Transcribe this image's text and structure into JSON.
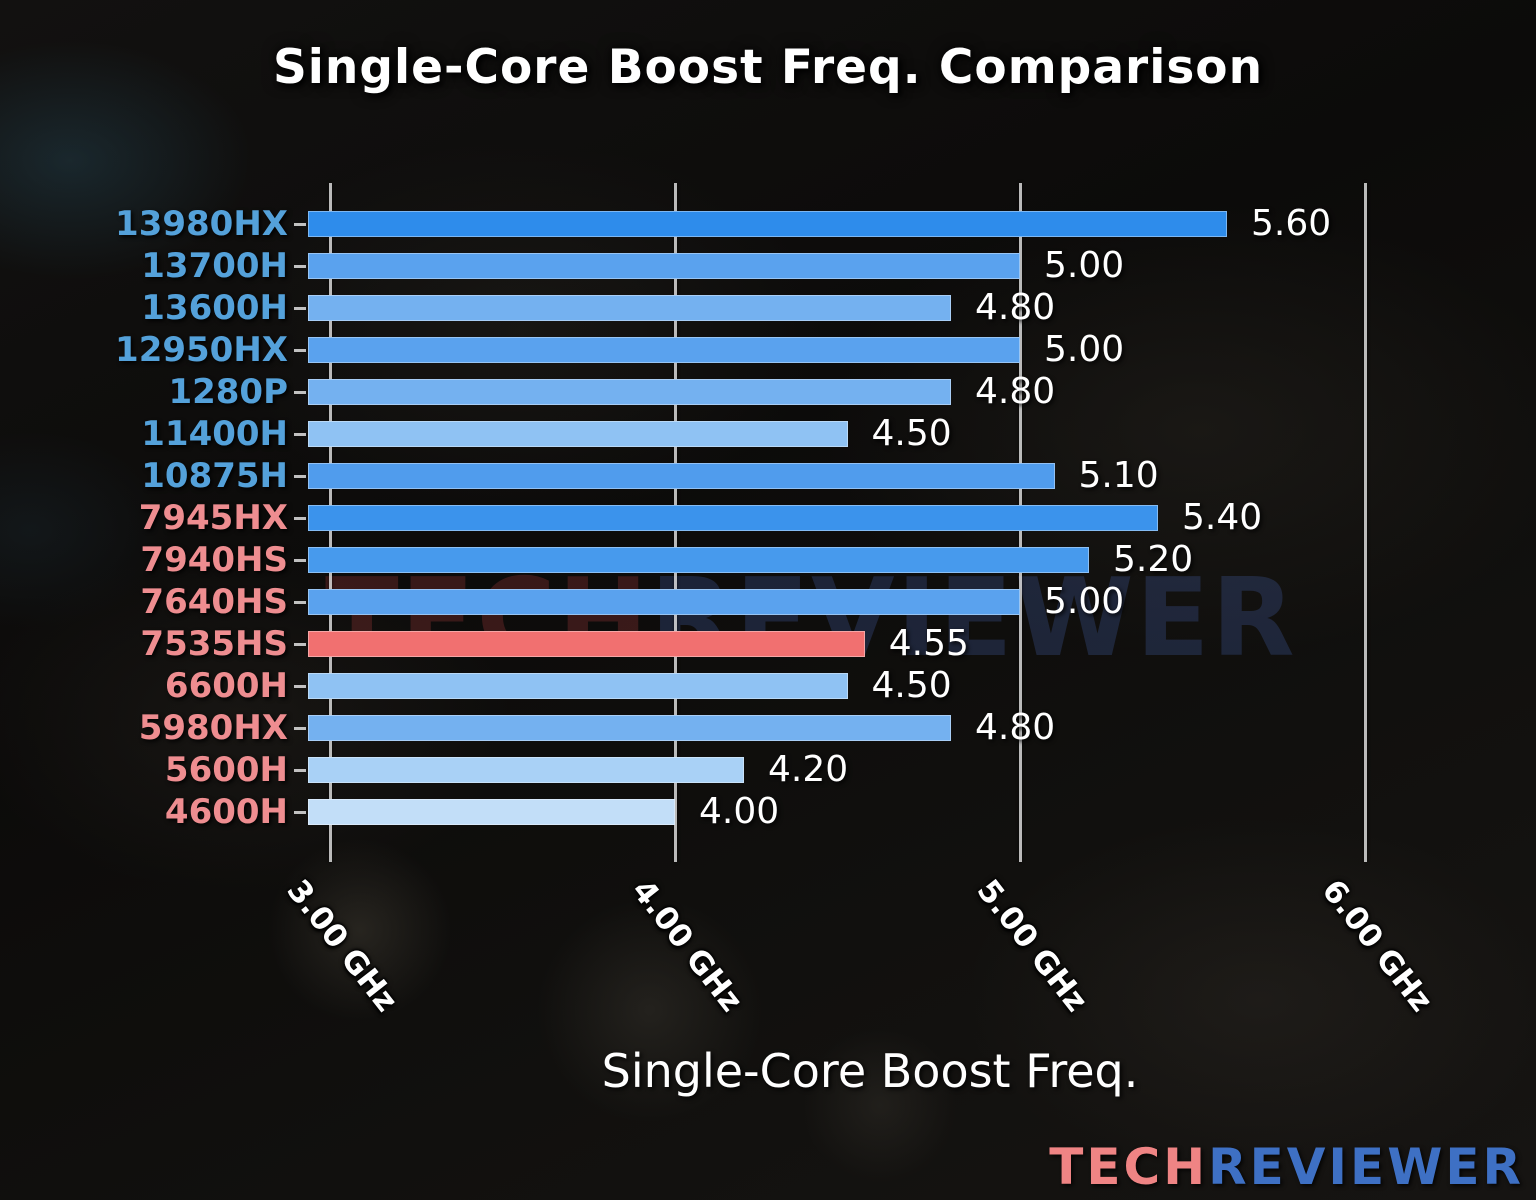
{
  "header": {
    "title": "Single-Core Boost Freq. Comparison"
  },
  "watermark": {
    "part1": "TECH",
    "part2": "REVIEWER",
    "color1": "rgba(185,65,65,0.26)",
    "color2": "rgba(75,105,185,0.26)"
  },
  "logo": {
    "part1": "TECH",
    "part2": "REVIEWER",
    "color1": "#ef8484",
    "color2": "#3e70c4"
  },
  "chart_data": {
    "type": "bar",
    "orientation": "horizontal",
    "title": "Single-Core Boost Freq. Comparison",
    "xlabel": "Single-Core Boost Freq.",
    "ylabel": "",
    "grid": true,
    "xlim": [
      2.94,
      6.38
    ],
    "x_ticks": [
      {
        "value": 3.0,
        "label": "3.00 GHz"
      },
      {
        "value": 4.0,
        "label": "4.00 GHz"
      },
      {
        "value": 5.0,
        "label": "5.00 GHz"
      },
      {
        "value": 6.0,
        "label": "6.00 GHz"
      }
    ],
    "categories": [
      "13980HX",
      "13700H",
      "13600H",
      "12950HX",
      "1280P",
      "11400H",
      "10875H",
      "7945HX",
      "7940HS",
      "7640HS",
      "7535HS",
      "6600H",
      "5980HX",
      "5600H",
      "4600H"
    ],
    "series": [
      {
        "name": "Single-Core Boost Freq.",
        "values": [
          5.6,
          5.0,
          4.8,
          5.0,
          4.8,
          4.5,
          5.1,
          5.4,
          5.2,
          5.0,
          4.55,
          4.5,
          4.8,
          4.2,
          4.0
        ]
      }
    ],
    "label_colors": {
      "intel": "#54a1da",
      "amd": "#ee8d90"
    },
    "rows": [
      {
        "label": "13980HX",
        "brand": "intel",
        "value": 5.6,
        "value_label": "5.60",
        "bar_color": "#2e8ceb"
      },
      {
        "label": "13700H",
        "brand": "intel",
        "value": 5.0,
        "value_label": "5.00",
        "bar_color": "#5aa2ee"
      },
      {
        "label": "13600H",
        "brand": "intel",
        "value": 4.8,
        "value_label": "4.80",
        "bar_color": "#74b1f0"
      },
      {
        "label": "12950HX",
        "brand": "intel",
        "value": 5.0,
        "value_label": "5.00",
        "bar_color": "#5aa2ee"
      },
      {
        "label": "1280P",
        "brand": "intel",
        "value": 4.8,
        "value_label": "4.80",
        "bar_color": "#74b1f0"
      },
      {
        "label": "11400H",
        "brand": "intel",
        "value": 4.5,
        "value_label": "4.50",
        "bar_color": "#8fc2f3"
      },
      {
        "label": "10875H",
        "brand": "intel",
        "value": 5.1,
        "value_label": "5.10",
        "bar_color": "#509ced"
      },
      {
        "label": "7945HX",
        "brand": "amd",
        "value": 5.4,
        "value_label": "5.40",
        "bar_color": "#3b93ec"
      },
      {
        "label": "7940HS",
        "brand": "amd",
        "value": 5.2,
        "value_label": "5.20",
        "bar_color": "#479aed"
      },
      {
        "label": "7640HS",
        "brand": "amd",
        "value": 5.0,
        "value_label": "5.00",
        "bar_color": "#5aa2ee"
      },
      {
        "label": "7535HS",
        "brand": "amd",
        "value": 4.55,
        "value_label": "4.55",
        "bar_color": "#f17070"
      },
      {
        "label": "6600H",
        "brand": "amd",
        "value": 4.5,
        "value_label": "4.50",
        "bar_color": "#8fc2f3"
      },
      {
        "label": "5980HX",
        "brand": "amd",
        "value": 4.8,
        "value_label": "4.80",
        "bar_color": "#74b1f0"
      },
      {
        "label": "5600H",
        "brand": "amd",
        "value": 4.2,
        "value_label": "4.20",
        "bar_color": "#a9d1f6"
      },
      {
        "label": "4600H",
        "brand": "amd",
        "value": 4.0,
        "value_label": "4.00",
        "bar_color": "#c2def8"
      }
    ]
  }
}
